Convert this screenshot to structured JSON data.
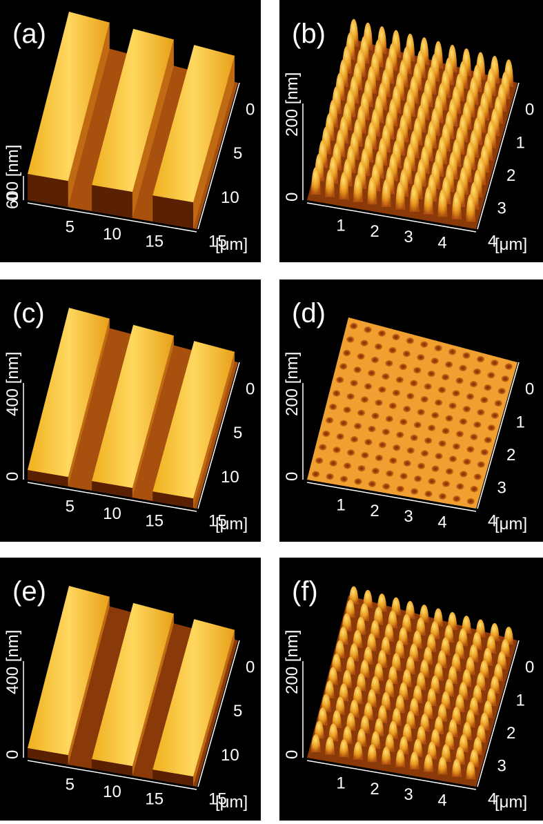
{
  "panels": [
    {
      "label": "(a)",
      "z_label": "600 [nm]",
      "z_zero": "0",
      "x_ticks": [
        "5",
        "10",
        "15"
      ],
      "y_ticks": [
        "0",
        "5",
        "10",
        "15"
      ],
      "unit": "[μm]"
    },
    {
      "label": "(b)",
      "z_label": "200 [nm]",
      "z_zero": "0",
      "x_ticks": [
        "1",
        "2",
        "3",
        "4"
      ],
      "y_ticks": [
        "0",
        "1",
        "2",
        "3",
        "4"
      ],
      "unit": "[μm]"
    },
    {
      "label": "(c)",
      "z_label": "400 [nm]",
      "z_zero": "0",
      "x_ticks": [
        "5",
        "10",
        "15"
      ],
      "y_ticks": [
        "0",
        "5",
        "10",
        "15"
      ],
      "unit": "[μm]"
    },
    {
      "label": "(d)",
      "z_label": "200 [nm]",
      "z_zero": "0",
      "x_ticks": [
        "1",
        "2",
        "3",
        "4"
      ],
      "y_ticks": [
        "0",
        "1",
        "2",
        "3",
        "4"
      ],
      "unit": "[μm]"
    },
    {
      "label": "(e)",
      "z_label": "400 [nm]",
      "z_zero": "0",
      "x_ticks": [
        "5",
        "10",
        "15"
      ],
      "y_ticks": [
        "0",
        "5",
        "10",
        "15"
      ],
      "unit": "[μm]"
    },
    {
      "label": "(f)",
      "z_label": "200 [nm]",
      "z_zero": "0",
      "x_ticks": [
        "1",
        "2",
        "3",
        "4"
      ],
      "y_ticks": [
        "0",
        "1",
        "2",
        "3",
        "4"
      ],
      "unit": "[μm]"
    }
  ]
}
